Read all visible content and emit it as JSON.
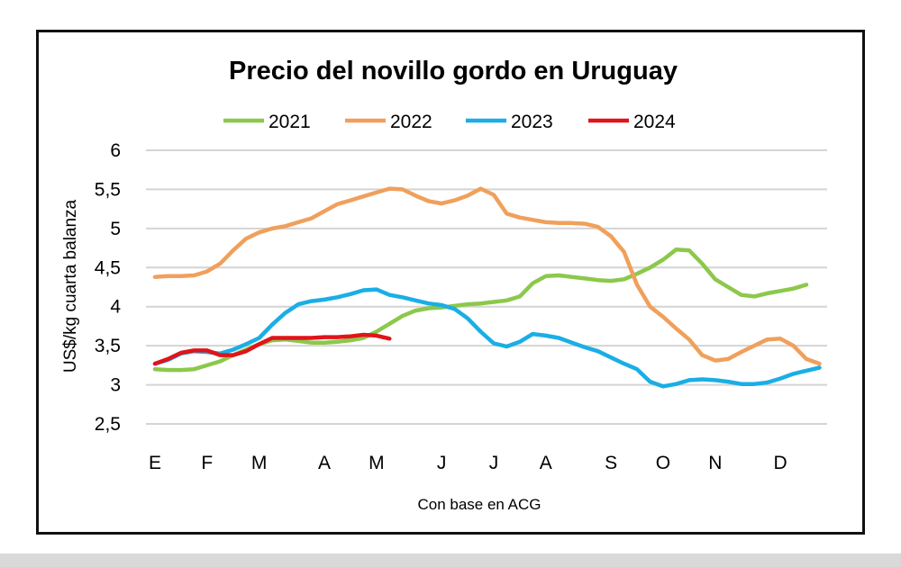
{
  "chart_data": {
    "type": "line",
    "title": "Precio del novillo gordo en Uruguay",
    "ylabel": "US$/kg cuarta balanza",
    "xlabel": "Con base en ACG",
    "ylim": [
      2.5,
      6
    ],
    "yticks": [
      "2,5",
      "3",
      "3,5",
      "4",
      "4,5",
      "5",
      "5,5",
      "6"
    ],
    "ytick_values": [
      2.5,
      3,
      3.5,
      4,
      4.5,
      5,
      5.5,
      6
    ],
    "x_unit": "week of year",
    "xticks": [
      {
        "label": "E",
        "week": 1
      },
      {
        "label": "F",
        "week": 5
      },
      {
        "label": "M",
        "week": 9
      },
      {
        "label": "A",
        "week": 14
      },
      {
        "label": "M",
        "week": 18
      },
      {
        "label": "J",
        "week": 23
      },
      {
        "label": "J",
        "week": 27
      },
      {
        "label": "A",
        "week": 31
      },
      {
        "label": "S",
        "week": 36
      },
      {
        "label": "O",
        "week": 40
      },
      {
        "label": "N",
        "week": 44
      },
      {
        "label": "D",
        "week": 49
      }
    ],
    "grid": true,
    "legend_position": "top",
    "series": [
      {
        "name": "2021",
        "color": "#8CC84B",
        "values": [
          3.2,
          3.19,
          3.19,
          3.2,
          3.25,
          3.3,
          3.38,
          3.45,
          3.52,
          3.57,
          3.58,
          3.56,
          3.54,
          3.54,
          3.55,
          3.57,
          3.6,
          3.68,
          3.78,
          3.88,
          3.95,
          3.98,
          3.99,
          4.01,
          4.03,
          4.04,
          4.06,
          4.08,
          4.13,
          4.3,
          4.39,
          4.4,
          4.38,
          4.36,
          4.34,
          4.33,
          4.35,
          4.42,
          4.5,
          4.6,
          4.73,
          4.72,
          4.55,
          4.35,
          4.25,
          4.15,
          4.13,
          4.17,
          4.2,
          4.23,
          4.28
        ]
      },
      {
        "name": "2022",
        "color": "#F0A05C",
        "values": [
          4.38,
          4.39,
          4.39,
          4.4,
          4.45,
          4.55,
          4.72,
          4.87,
          4.95,
          5.0,
          5.03,
          5.08,
          5.13,
          5.22,
          5.31,
          5.36,
          5.41,
          5.46,
          5.51,
          5.5,
          5.42,
          5.35,
          5.32,
          5.36,
          5.42,
          5.51,
          5.43,
          5.19,
          5.14,
          5.11,
          5.08,
          5.07,
          5.07,
          5.06,
          5.02,
          4.9,
          4.7,
          4.28,
          4.0,
          3.87,
          3.72,
          3.58,
          3.38,
          3.31,
          3.33,
          3.42,
          3.5,
          3.58,
          3.59,
          3.5,
          3.33,
          3.27
        ]
      },
      {
        "name": "2023",
        "color": "#1AAEE5",
        "values": [
          3.27,
          3.32,
          3.4,
          3.43,
          3.42,
          3.4,
          3.45,
          3.52,
          3.6,
          3.77,
          3.92,
          4.03,
          4.07,
          4.09,
          4.12,
          4.16,
          4.21,
          4.22,
          4.15,
          4.12,
          4.08,
          4.04,
          4.02,
          3.97,
          3.85,
          3.68,
          3.53,
          3.49,
          3.55,
          3.65,
          3.63,
          3.6,
          3.54,
          3.48,
          3.43,
          3.35,
          3.27,
          3.2,
          3.04,
          2.98,
          3.01,
          3.06,
          3.07,
          3.06,
          3.04,
          3.01,
          3.01,
          3.03,
          3.08,
          3.14,
          3.18,
          3.22
        ]
      },
      {
        "name": "2024",
        "color": "#E0141B",
        "values": [
          3.27,
          3.33,
          3.41,
          3.44,
          3.44,
          3.38,
          3.38,
          3.43,
          3.52,
          3.6,
          3.6,
          3.6,
          3.6,
          3.61,
          3.61,
          3.62,
          3.64,
          3.63,
          3.59
        ]
      }
    ]
  }
}
